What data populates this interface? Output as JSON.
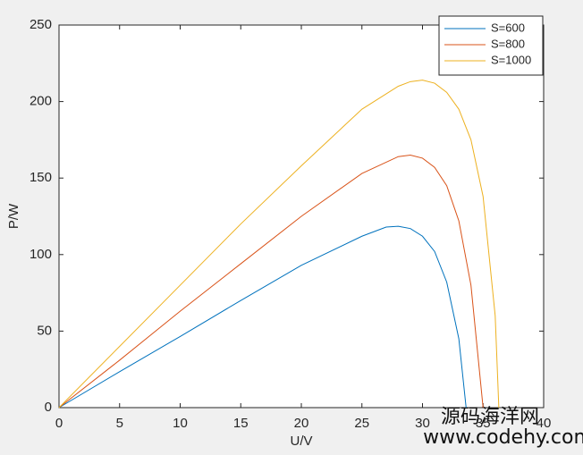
{
  "chart_data": {
    "type": "line",
    "xlabel": "U/V",
    "ylabel": "P/W",
    "xlim": [
      0,
      40
    ],
    "xticks": [
      0,
      5,
      10,
      15,
      20,
      25,
      30,
      35,
      40
    ],
    "ylim": [
      0,
      250
    ],
    "yticks": [
      0,
      50,
      100,
      150,
      200,
      250
    ],
    "grid": false,
    "legend": "upper right",
    "series": [
      {
        "name": "S=600",
        "color": "#0072BD",
        "x": [
          0,
          5,
          10,
          15,
          20,
          25,
          27,
          28,
          29,
          30,
          31,
          32,
          33,
          33.6
        ],
        "values": [
          0,
          23.5,
          46.5,
          70,
          93,
          112,
          118,
          118.5,
          117,
          112,
          102,
          82,
          45,
          0
        ]
      },
      {
        "name": "S=800",
        "color": "#D95319",
        "x": [
          0,
          5,
          10,
          15,
          20,
          25,
          28,
          29,
          30,
          31,
          32,
          33,
          34,
          35
        ],
        "values": [
          0,
          31,
          63,
          94,
          125,
          153,
          164,
          165,
          163,
          157,
          145,
          122,
          80,
          0
        ]
      },
      {
        "name": "S=1000",
        "color": "#EDB120",
        "x": [
          0,
          5,
          10,
          15,
          20,
          25,
          28,
          29,
          30,
          31,
          32,
          33,
          34,
          35,
          36,
          36.3
        ],
        "values": [
          0,
          40,
          80,
          120,
          158,
          195,
          210,
          213,
          214,
          212,
          206,
          195,
          175,
          138,
          60,
          0
        ]
      }
    ]
  },
  "watermark": {
    "line1": "源码海洋网",
    "line2": "www.codehy.com"
  }
}
